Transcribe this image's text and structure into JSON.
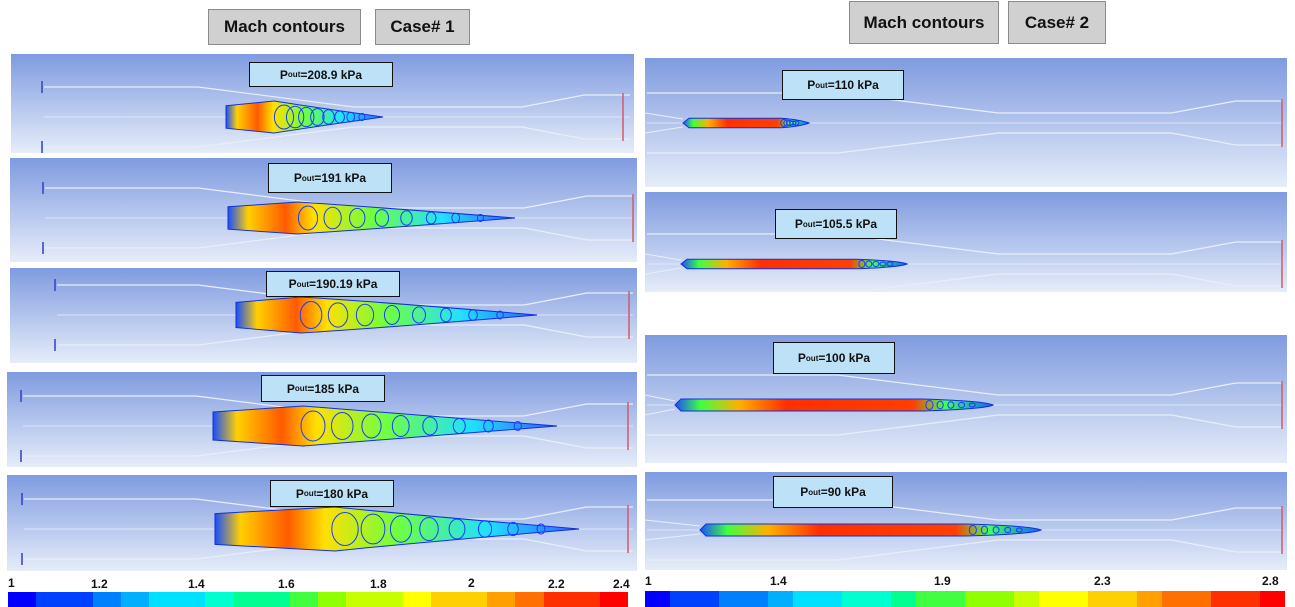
{
  "case1": {
    "header": {
      "title": "Mach contours",
      "case": "Case# 1"
    },
    "panels": [
      {
        "label_prefix": "P",
        "label_sub": "out",
        "label_value": "=208.9 kPa"
      },
      {
        "label_prefix": "P",
        "label_sub": "out",
        "label_value": "=191 kPa"
      },
      {
        "label_prefix": "P",
        "label_sub": "out",
        "label_value": "=190.19 kPa"
      },
      {
        "label_prefix": "P",
        "label_sub": "out",
        "label_value": "=185 kPa"
      },
      {
        "label_prefix": "P",
        "label_sub": "out",
        "label_value": "=180 kPa"
      }
    ],
    "colorbar_ticks": [
      "1",
      "1.2",
      "1.4",
      "1.6",
      "1.8",
      "2",
      "2.2",
      "2.4"
    ]
  },
  "case2": {
    "header": {
      "title": "Mach contours",
      "case": "Case# 2"
    },
    "panels": [
      {
        "label_prefix": "P",
        "label_sub": "out",
        "label_value": "=110 kPa"
      },
      {
        "label_prefix": "P",
        "label_sub": "out",
        "label_value": "=105.5 kPa"
      },
      {
        "label_prefix": "P",
        "label_sub": "out",
        "label_value": "=100 kPa"
      },
      {
        "label_prefix": "P",
        "label_sub": "out",
        "label_value": "=90 kPa"
      }
    ],
    "colorbar_ticks": [
      "1",
      "1.4",
      "1.9",
      "2.3",
      "2.8"
    ]
  },
  "colors": {
    "panel_top": "#7f9be0",
    "panel_bottom": "#e6edf9",
    "label_bg": "#bde1f7",
    "geometry_line": "#e8eef8",
    "outlet_line": "#d05a6a",
    "inlet_line": "#3040c8",
    "colormap": [
      "#0000ff",
      "#0040ff",
      "#0080ff",
      "#00b0ff",
      "#00e0ff",
      "#00ffd0",
      "#00ff90",
      "#40ff40",
      "#90ff00",
      "#c8ff00",
      "#ffff00",
      "#ffd000",
      "#ffa000",
      "#ff7000",
      "#ff3000",
      "#ff0000"
    ]
  }
}
